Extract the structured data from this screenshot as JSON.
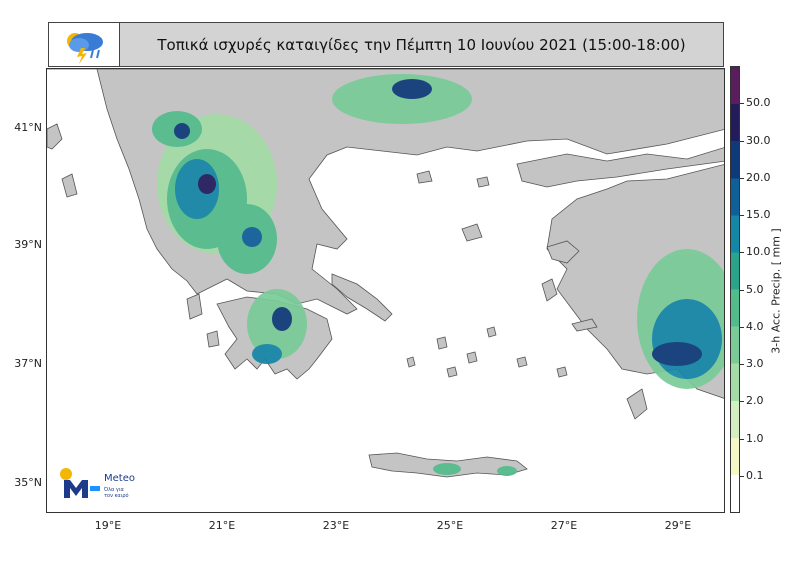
{
  "title": "Τοπικά ισχυρές καταιγίδες την Πέμπτη 10 Ιουνίου 2021 (15:00-18:00)",
  "lat_labels": [
    "41°N",
    "39°N",
    "37°N",
    "35°N"
  ],
  "lon_labels": [
    "19°E",
    "21°E",
    "23°E",
    "25°E",
    "27°E",
    "29°E"
  ],
  "colorbar": {
    "label": "3-h Acc. Precip. [ mm ]",
    "ticks": [
      "50.0",
      "30.0",
      "20.0",
      "15.0",
      "10.0",
      "5.0",
      "4.0",
      "3.0",
      "2.0",
      "1.0",
      "0.1"
    ],
    "colors": [
      "#ffffff",
      "#f5f7c7",
      "#d4eec0",
      "#a4dba6",
      "#7acb98",
      "#52bc8b",
      "#2aa58c",
      "#1486a6",
      "#0f5f9a",
      "#0d3a7a",
      "#221c5c",
      "#5a1e5e"
    ]
  },
  "brand": {
    "name": "Meteo",
    "slogan": "Όλα για τον καιρό"
  },
  "colors": {
    "land": "#c4c4c4",
    "sea": "#ffffff",
    "coast": "#555555"
  }
}
